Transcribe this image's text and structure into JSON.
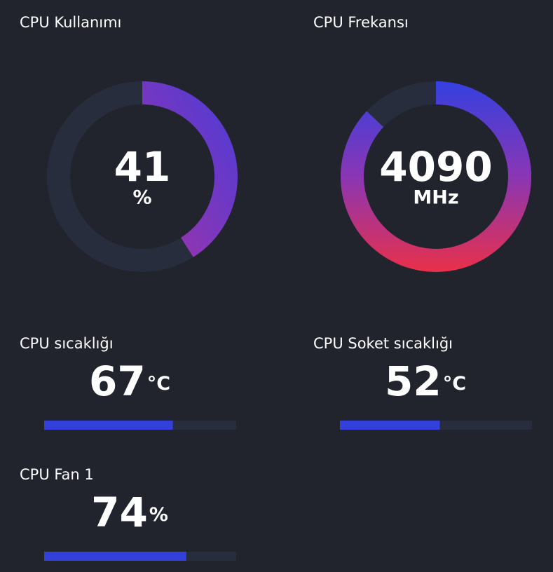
{
  "gauges": [
    {
      "title": "CPU Kullanımı",
      "value": 41,
      "unit": "%",
      "range": [
        0,
        100
      ]
    },
    {
      "title": "CPU Frekansı",
      "value": 4090,
      "unit": "MHz",
      "range": [
        0,
        4700
      ]
    }
  ],
  "bars": [
    {
      "title": "CPU sıcaklığı",
      "value": 67,
      "unit": "°C",
      "range": [
        0,
        100
      ]
    },
    {
      "title": "CPU Soket sıcaklığı",
      "value": 52,
      "unit": "°C",
      "range": [
        0,
        100
      ]
    },
    {
      "title": "CPU Fan 1",
      "value": 74,
      "unit": "%",
      "range": [
        0,
        100
      ]
    }
  ]
}
